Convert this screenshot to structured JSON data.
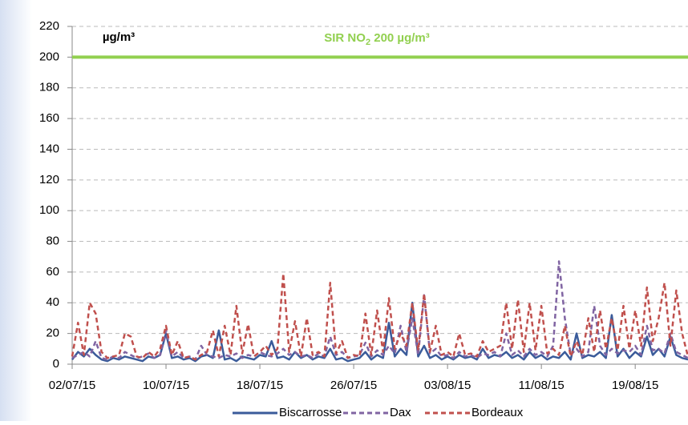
{
  "chart_data": {
    "type": "line",
    "y_unit_label": "µg/m³",
    "threshold": {
      "value": 200,
      "label": "SIR NO",
      "label_sub": "2",
      "label_rest": " 200 µg/m³",
      "color": "#92d050"
    },
    "x": [
      0,
      0.5,
      1,
      1.5,
      2,
      2.5,
      3,
      3.5,
      4,
      4.5,
      5,
      5.5,
      6,
      6.5,
      7,
      7.5,
      8,
      8.5,
      9,
      9.5,
      10,
      10.5,
      11,
      11.5,
      12,
      12.5,
      13,
      13.5,
      14,
      14.5,
      15,
      15.5,
      16,
      16.5,
      17,
      17.5,
      18,
      18.5,
      19,
      19.5,
      20,
      20.5,
      21,
      21.5,
      22,
      22.5,
      23,
      23.5,
      24,
      24.5,
      25,
      25.5,
      26,
      26.5,
      27,
      27.5,
      28,
      28.5,
      29,
      29.5,
      30,
      30.5,
      31,
      31.5,
      32,
      32.5,
      33,
      33.5,
      34,
      34.5,
      35,
      35.5,
      36,
      36.5,
      37,
      37.5,
      38,
      38.5,
      39,
      39.5,
      40,
      40.5,
      41,
      41.5,
      42,
      42.5,
      43,
      43.5,
      44,
      44.5,
      45,
      45.5,
      46,
      46.5,
      47,
      47.5,
      48,
      48.5,
      49,
      49.5,
      50,
      50.5,
      51,
      51.5,
      52,
      52.5
    ],
    "series": [
      {
        "name": "Biscarrosse",
        "color": "#3a5b9a",
        "dashed": false,
        "values": [
          3,
          8,
          5,
          10,
          6,
          3,
          2,
          4,
          3,
          5,
          4,
          3,
          2,
          5,
          4,
          6,
          20,
          4,
          5,
          3,
          4,
          2,
          5,
          6,
          4,
          22,
          3,
          4,
          2,
          5,
          4,
          3,
          6,
          5,
          15,
          4,
          5,
          3,
          8,
          4,
          6,
          3,
          5,
          4,
          10,
          3,
          4,
          2,
          3,
          4,
          8,
          3,
          6,
          4,
          27,
          5,
          10,
          6,
          40,
          5,
          12,
          4,
          6,
          3,
          5,
          3,
          6,
          4,
          5,
          3,
          10,
          4,
          6,
          5,
          8,
          4,
          6,
          3,
          8,
          4,
          6,
          3,
          5,
          4,
          8,
          3,
          20,
          4,
          6,
          5,
          8,
          4,
          32,
          5,
          10,
          4,
          8,
          5,
          18,
          6,
          10,
          5,
          18,
          6,
          4,
          3
        ]
      },
      {
        "name": "Dax",
        "color": "#8064a2",
        "dashed": true,
        "values": [
          4,
          6,
          8,
          5,
          15,
          4,
          3,
          5,
          4,
          8,
          6,
          4,
          5,
          7,
          4,
          6,
          22,
          5,
          8,
          4,
          5,
          3,
          12,
          6,
          5,
          4,
          6,
          5,
          7,
          4,
          6,
          5,
          8,
          6,
          5,
          7,
          10,
          6,
          8,
          5,
          6,
          4,
          7,
          5,
          18,
          6,
          8,
          4,
          5,
          6,
          14,
          5,
          9,
          6,
          12,
          7,
          25,
          8,
          30,
          6,
          45,
          7,
          10,
          5,
          6,
          4,
          8,
          5,
          6,
          4,
          7,
          6,
          8,
          5,
          20,
          6,
          9,
          5,
          10,
          6,
          8,
          5,
          12,
          67,
          30,
          6,
          10,
          5,
          8,
          38,
          12,
          6,
          10,
          7,
          9,
          8,
          12,
          6,
          25,
          9,
          10,
          7,
          20,
          8,
          6,
          4
        ]
      },
      {
        "name": "Bordeaux",
        "color": "#c0504d",
        "dashed": true,
        "values": [
          5,
          27,
          6,
          40,
          33,
          8,
          4,
          5,
          6,
          20,
          18,
          5,
          4,
          8,
          5,
          10,
          25,
          6,
          15,
          4,
          5,
          3,
          6,
          8,
          22,
          5,
          25,
          6,
          38,
          7,
          26,
          5,
          8,
          12,
          6,
          10,
          59,
          8,
          28,
          5,
          30,
          6,
          8,
          5,
          53,
          7,
          15,
          4,
          6,
          5,
          33,
          6,
          35,
          8,
          43,
          10,
          20,
          12,
          40,
          9,
          46,
          8,
          25,
          6,
          8,
          5,
          20,
          6,
          7,
          5,
          15,
          8,
          10,
          12,
          40,
          10,
          42,
          8,
          40,
          9,
          38,
          7,
          10,
          6,
          25,
          5,
          15,
          6,
          30,
          8,
          35,
          10,
          30,
          9,
          38,
          10,
          35,
          12,
          50,
          15,
          30,
          53,
          12,
          48,
          20,
          5
        ]
      }
    ],
    "xlim": [
      0,
      52.5
    ],
    "xticks": [
      {
        "value": 0,
        "label": "02/07/15"
      },
      {
        "value": 8,
        "label": "10/07/15"
      },
      {
        "value": 16,
        "label": "18/07/15"
      },
      {
        "value": 24,
        "label": "26/07/15"
      },
      {
        "value": 32,
        "label": "03/08/15"
      },
      {
        "value": 40,
        "label": "11/08/15"
      },
      {
        "value": 48,
        "label": "19/08/15"
      }
    ],
    "ylim": [
      0,
      220
    ],
    "yticks": [
      0,
      20,
      40,
      60,
      80,
      100,
      120,
      140,
      160,
      180,
      200,
      220
    ],
    "grid": true
  }
}
